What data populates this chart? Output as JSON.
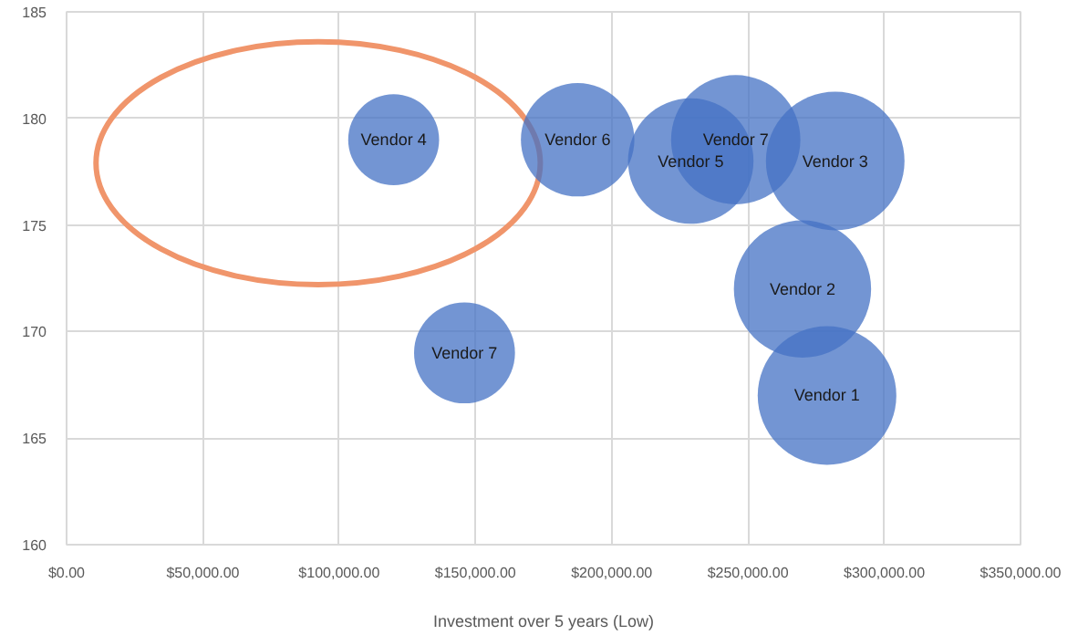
{
  "chart_data": {
    "type": "bubble",
    "xlabel": "Investment over 5 years (Low)",
    "x": [
      279000,
      270000,
      282000,
      120000,
      229000,
      187500,
      245500,
      146000
    ],
    "series": [
      {
        "color": "#4472c4",
        "values": [
          167,
          172,
          178,
          179,
          178,
          179,
          179,
          169
        ],
        "sizes": [
          1,
          0.98,
          1,
          0.43,
          0.82,
          0.67,
          0.87,
          0.53
        ]
      }
    ],
    "annotations": [
      {
        "text": "Vendor 1",
        "x": 279000,
        "y": 167
      },
      {
        "text": "Vendor 2",
        "x": 270000,
        "y": 172
      },
      {
        "text": "Vendor 3",
        "x": 282000,
        "y": 178
      },
      {
        "text": "Vendor 4",
        "x": 120000,
        "y": 179
      },
      {
        "text": "Vendor 5",
        "x": 229000,
        "y": 178
      },
      {
        "text": "Vendor 6",
        "x": 187500,
        "y": 179
      },
      {
        "text": "Vendor 7",
        "x": 245500,
        "y": 179
      },
      {
        "text": "Vendor 7",
        "x": 146000,
        "y": 169
      }
    ],
    "xlim": [
      0,
      350000
    ],
    "xticks": [
      {
        "value": 0,
        "label": "$0.00"
      },
      {
        "value": 50000,
        "label": "$50,000.00"
      },
      {
        "value": 100000,
        "label": "$100,000.00"
      },
      {
        "value": 150000,
        "label": "$150,000.00"
      },
      {
        "value": 200000,
        "label": "$200,000.00"
      },
      {
        "value": 250000,
        "label": "$250,000.00"
      },
      {
        "value": 300000,
        "label": "$300,000.00"
      },
      {
        "value": 350000,
        "label": "$350,000.00"
      }
    ],
    "ylim": [
      160,
      185
    ],
    "yticks": [
      160,
      165,
      170,
      175,
      180,
      185
    ],
    "grid": true
  }
}
